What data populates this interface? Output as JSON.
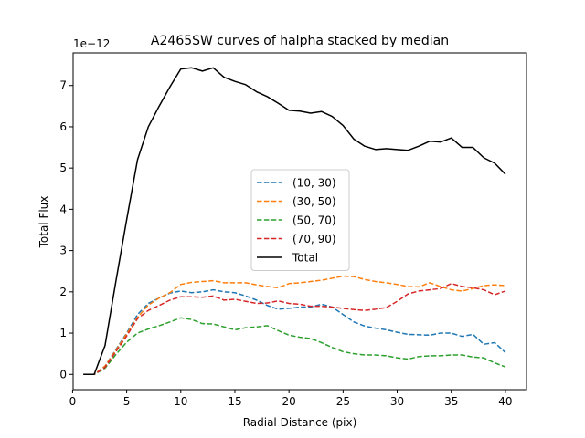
{
  "chart_data": {
    "type": "line",
    "title": "A2465SW curves of halpha stacked by median",
    "xlabel": "Radial Distance (pix)",
    "ylabel": "Total Flux",
    "y_offset_label": "1e−12",
    "xlim": [
      0.05,
      41.95
    ],
    "ylim": [
      -0.37,
      7.79
    ],
    "xticks": [
      0,
      5,
      10,
      15,
      20,
      25,
      30,
      35,
      40
    ],
    "yticks": [
      0,
      1,
      2,
      3,
      4,
      5,
      6,
      7
    ],
    "legend_position": "center",
    "x": [
      1,
      2,
      3,
      4,
      5,
      6,
      7,
      8,
      9,
      10,
      11,
      12,
      13,
      14,
      15,
      16,
      17,
      18,
      19,
      20,
      21,
      22,
      23,
      24,
      25,
      26,
      27,
      28,
      29,
      30,
      31,
      32,
      33,
      34,
      35,
      36,
      37,
      38,
      39,
      40
    ],
    "series": [
      {
        "name": "(10, 30)",
        "color": "#1f77b4",
        "dash": "dashed",
        "values": [
          0,
          0,
          0.2,
          0.6,
          1.0,
          1.45,
          1.72,
          1.85,
          1.97,
          2.02,
          1.98,
          2.0,
          2.05,
          2.0,
          1.98,
          1.9,
          1.8,
          1.67,
          1.58,
          1.6,
          1.63,
          1.63,
          1.7,
          1.63,
          1.45,
          1.27,
          1.17,
          1.12,
          1.08,
          1.02,
          0.97,
          0.96,
          0.95,
          1.0,
          1.0,
          0.92,
          0.97,
          0.73,
          0.77,
          0.53
        ]
      },
      {
        "name": "(30, 50)",
        "color": "#ff7f0e",
        "dash": "dashed",
        "values": [
          0,
          0,
          0.2,
          0.58,
          0.98,
          1.38,
          1.68,
          1.85,
          1.98,
          2.18,
          2.23,
          2.25,
          2.27,
          2.22,
          2.22,
          2.22,
          2.17,
          2.13,
          2.1,
          2.2,
          2.22,
          2.25,
          2.28,
          2.33,
          2.38,
          2.37,
          2.3,
          2.25,
          2.22,
          2.18,
          2.13,
          2.12,
          2.22,
          2.13,
          2.05,
          2.02,
          2.08,
          2.15,
          2.17,
          2.15
        ]
      },
      {
        "name": "(50, 70)",
        "color": "#2ca02c",
        "dash": "dashed",
        "values": [
          0,
          0,
          0.15,
          0.48,
          0.78,
          1.0,
          1.1,
          1.18,
          1.27,
          1.37,
          1.33,
          1.23,
          1.22,
          1.15,
          1.08,
          1.13,
          1.15,
          1.18,
          1.06,
          0.95,
          0.9,
          0.87,
          0.77,
          0.65,
          0.55,
          0.5,
          0.47,
          0.47,
          0.45,
          0.4,
          0.37,
          0.43,
          0.45,
          0.45,
          0.47,
          0.47,
          0.42,
          0.4,
          0.28,
          0.18
        ]
      },
      {
        "name": "(70, 90)",
        "color": "#d62728",
        "dash": "dashed",
        "values": [
          0,
          0,
          0.17,
          0.55,
          0.93,
          1.35,
          1.55,
          1.67,
          1.8,
          1.88,
          1.88,
          1.87,
          1.9,
          1.8,
          1.82,
          1.77,
          1.72,
          1.73,
          1.78,
          1.72,
          1.7,
          1.65,
          1.65,
          1.63,
          1.6,
          1.57,
          1.55,
          1.58,
          1.62,
          1.77,
          1.95,
          2.02,
          2.05,
          2.08,
          2.2,
          2.13,
          2.1,
          2.05,
          1.93,
          2.02
        ]
      },
      {
        "name": "Total",
        "color": "#000000",
        "dash": "solid",
        "values": [
          0,
          0,
          0.7,
          2.25,
          3.75,
          5.2,
          6.0,
          6.5,
          6.97,
          7.4,
          7.43,
          7.35,
          7.43,
          7.2,
          7.1,
          7.02,
          6.85,
          6.73,
          6.57,
          6.4,
          6.38,
          6.33,
          6.37,
          6.25,
          6.03,
          5.7,
          5.53,
          5.45,
          5.47,
          5.45,
          5.43,
          5.53,
          5.65,
          5.63,
          5.73,
          5.5,
          5.5,
          5.25,
          5.12,
          4.85
        ]
      }
    ]
  }
}
